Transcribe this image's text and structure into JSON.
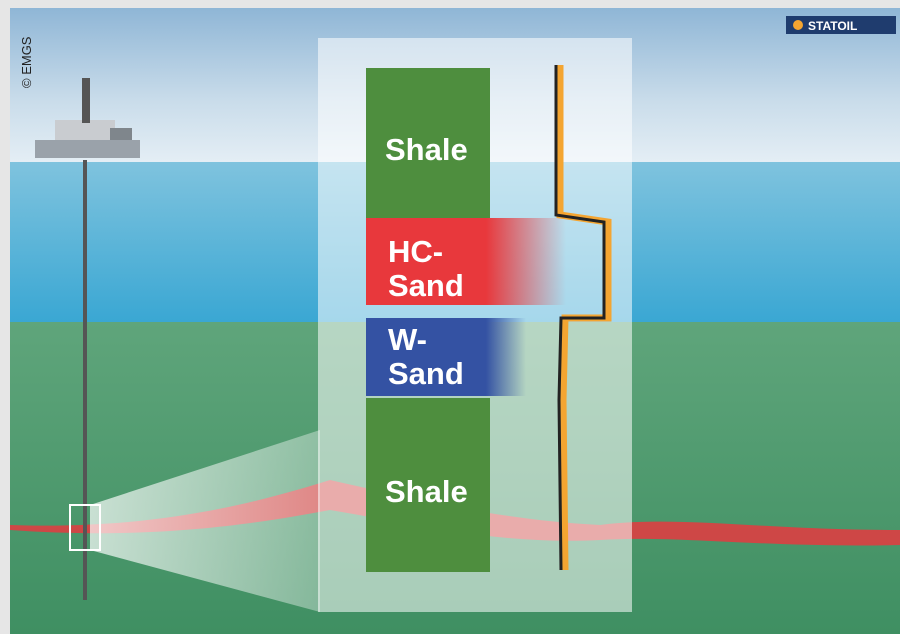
{
  "credit": "© EMGS",
  "logo": "STATOIL",
  "layers": [
    {
      "lines": [
        "Shale"
      ]
    },
    {
      "lines": [
        "HC-",
        "Sand"
      ]
    },
    {
      "lines": [
        "W-",
        "Sand"
      ]
    },
    {
      "lines": [
        "Shale"
      ]
    }
  ]
}
